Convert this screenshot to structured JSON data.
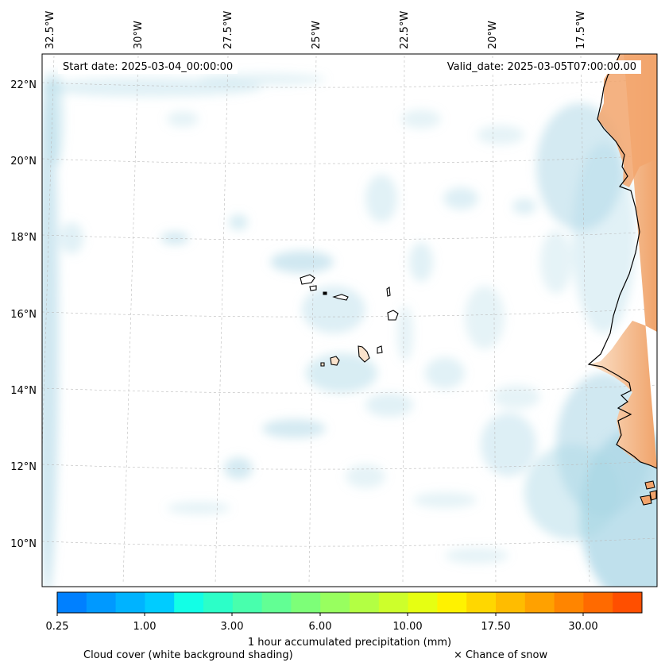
{
  "map": {
    "start_date_label": "Start date: 2025-03-04_00:00:00",
    "valid_date_label": "Valid_date: 2025-03-05T07:00:00.00",
    "lon_labels": [
      "32.5°W",
      "30°W",
      "27.5°W",
      "25°W",
      "22.5°W",
      "20°W",
      "17.5°W"
    ],
    "lat_labels": [
      "22°N",
      "20°N",
      "18°N",
      "16°N",
      "14°N",
      "12°N",
      "10°N"
    ],
    "colors": {
      "cloud": "#a9d6e5",
      "land_warm": "#f0a36a",
      "land_pale": "#fbe3cc",
      "gridline": "#bbbbbb",
      "coast": "#000000"
    }
  },
  "colorbar": {
    "tick_labels": [
      "0.25",
      "1.00",
      "3.00",
      "6.00",
      "10.00",
      "17.50",
      "30.00"
    ],
    "colors": [
      "#0080ff",
      "#0099ff",
      "#00b3ff",
      "#00ccff",
      "#12ffe6",
      "#2cffc8",
      "#48ffad",
      "#62ff94",
      "#7dff78",
      "#98ff5f",
      "#b3ff43",
      "#cdff2b",
      "#e6ff12",
      "#fff200",
      "#ffd700",
      "#ffbc00",
      "#ffa100",
      "#ff8500",
      "#ff6a00",
      "#ff4f00"
    ],
    "label": "1 hour accumulated precipitation (mm)"
  },
  "legend": {
    "cloud_note": "Cloud cover (white background shading)",
    "snow_note": "× Chance of snow"
  }
}
